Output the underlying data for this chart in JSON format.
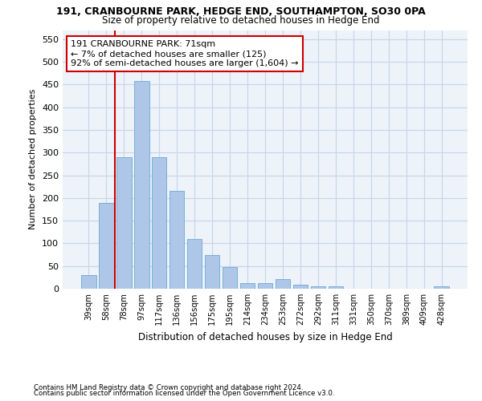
{
  "title1": "191, CRANBOURNE PARK, HEDGE END, SOUTHAMPTON, SO30 0PA",
  "title2": "Size of property relative to detached houses in Hedge End",
  "xlabel": "Distribution of detached houses by size in Hedge End",
  "ylabel": "Number of detached properties",
  "categories": [
    "39sqm",
    "58sqm",
    "78sqm",
    "97sqm",
    "117sqm",
    "136sqm",
    "156sqm",
    "175sqm",
    "195sqm",
    "214sqm",
    "234sqm",
    "253sqm",
    "272sqm",
    "292sqm",
    "311sqm",
    "331sqm",
    "350sqm",
    "370sqm",
    "389sqm",
    "409sqm",
    "428sqm"
  ],
  "values": [
    30,
    190,
    290,
    458,
    290,
    215,
    110,
    75,
    47,
    13,
    13,
    21,
    8,
    5,
    6,
    0,
    0,
    0,
    0,
    0,
    5
  ],
  "bar_color": "#aec6e8",
  "bar_edge_color": "#6aaad4",
  "grid_color": "#c8d4e8",
  "background_color": "#eef2f9",
  "vline_color": "#cc0000",
  "annotation_text": "191 CRANBOURNE PARK: 71sqm\n← 7% of detached houses are smaller (125)\n92% of semi-detached houses are larger (1,604) →",
  "annotation_box_color": "#ffffff",
  "annotation_box_edge": "#cc0000",
  "ylim": [
    0,
    570
  ],
  "yticks": [
    0,
    50,
    100,
    150,
    200,
    250,
    300,
    350,
    400,
    450,
    500,
    550
  ],
  "footnote1": "Contains HM Land Registry data © Crown copyright and database right 2024.",
  "footnote2": "Contains public sector information licensed under the Open Government Licence v3.0."
}
